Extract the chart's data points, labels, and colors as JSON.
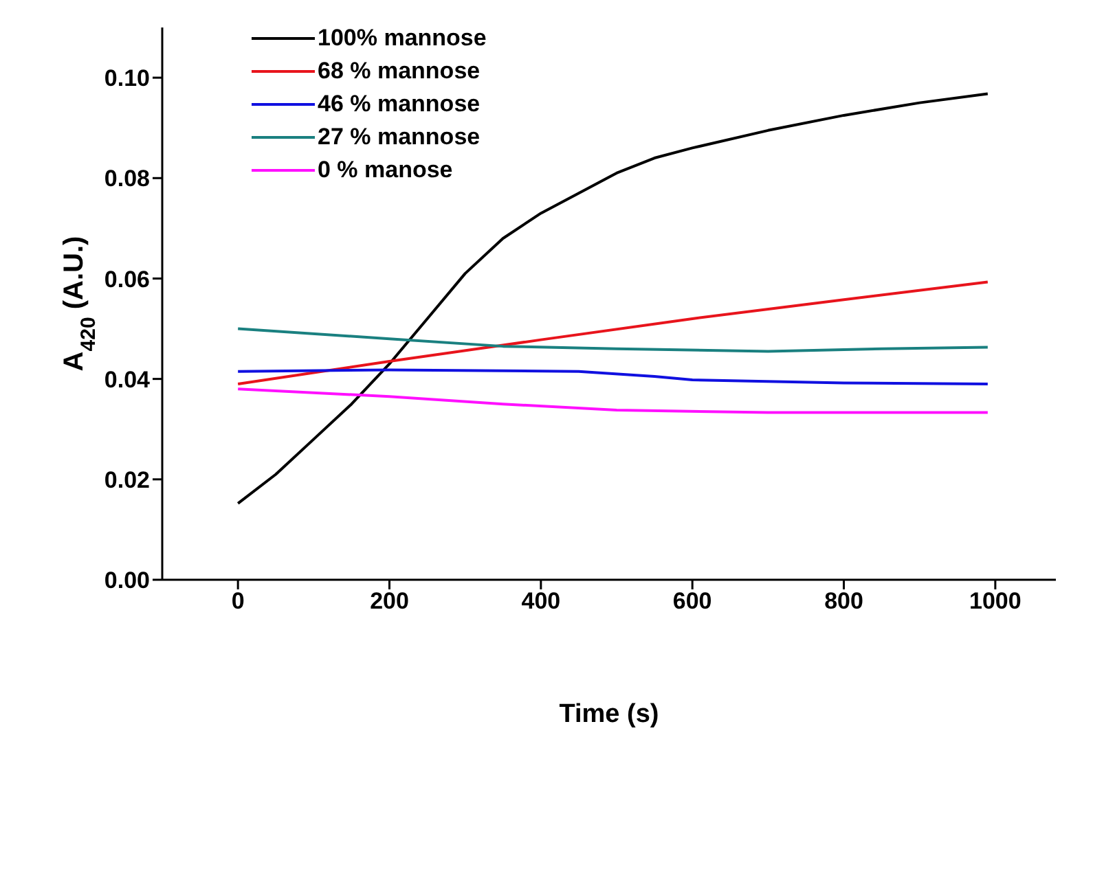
{
  "chart_data": {
    "type": "line",
    "xlabel": "Time (s)",
    "ylabel": "A$_{420}$ (A.U.)",
    "xlim": [
      -100,
      1080
    ],
    "xticks": [
      0,
      200,
      400,
      600,
      800,
      1000
    ],
    "ylim": [
      0,
      0.11
    ],
    "yticks": [
      {
        "value": 0,
        "label": "0.00"
      },
      0.02,
      0.04,
      0.06,
      0.08,
      {
        "value": 0.1,
        "label": "0.10"
      }
    ],
    "grid": false,
    "legend": "top left",
    "marker": "none",
    "line_style": "solid",
    "series": [
      {
        "name": "100% mannose",
        "color": "#000000",
        "x": [
          0,
          50,
          100,
          150,
          200,
          250,
          300,
          350,
          400,
          450,
          500,
          550,
          600,
          700,
          800,
          900,
          990
        ],
        "values": [
          0.0152,
          0.021,
          0.028,
          0.035,
          0.043,
          0.052,
          0.061,
          0.068,
          0.073,
          0.077,
          0.081,
          0.084,
          0.086,
          0.0895,
          0.0925,
          0.095,
          0.0968
        ]
      },
      {
        "name": "68 % mannose",
        "color": "#e8141c",
        "x": [
          0,
          200,
          400,
          600,
          800,
          990
        ],
        "values": [
          0.039,
          0.0435,
          0.0478,
          0.052,
          0.0558,
          0.0593
        ]
      },
      {
        "name": "46 % mannose",
        "color": "#1010e0",
        "x": [
          0,
          200,
          450,
          550,
          600,
          800,
          990
        ],
        "values": [
          0.0415,
          0.0418,
          0.0415,
          0.0405,
          0.0398,
          0.0392,
          0.039
        ]
      },
      {
        "name": "27 % mannose",
        "color": "#1a8080",
        "x": [
          0,
          200,
          350,
          500,
          700,
          850,
          990
        ],
        "values": [
          0.05,
          0.048,
          0.0465,
          0.046,
          0.0455,
          0.046,
          0.0463
        ]
      },
      {
        "name": "0 % manose",
        "color": "#ff10ff",
        "x": [
          0,
          200,
          350,
          500,
          700,
          990
        ],
        "values": [
          0.038,
          0.0365,
          0.035,
          0.0338,
          0.0333,
          0.0333
        ]
      }
    ]
  }
}
